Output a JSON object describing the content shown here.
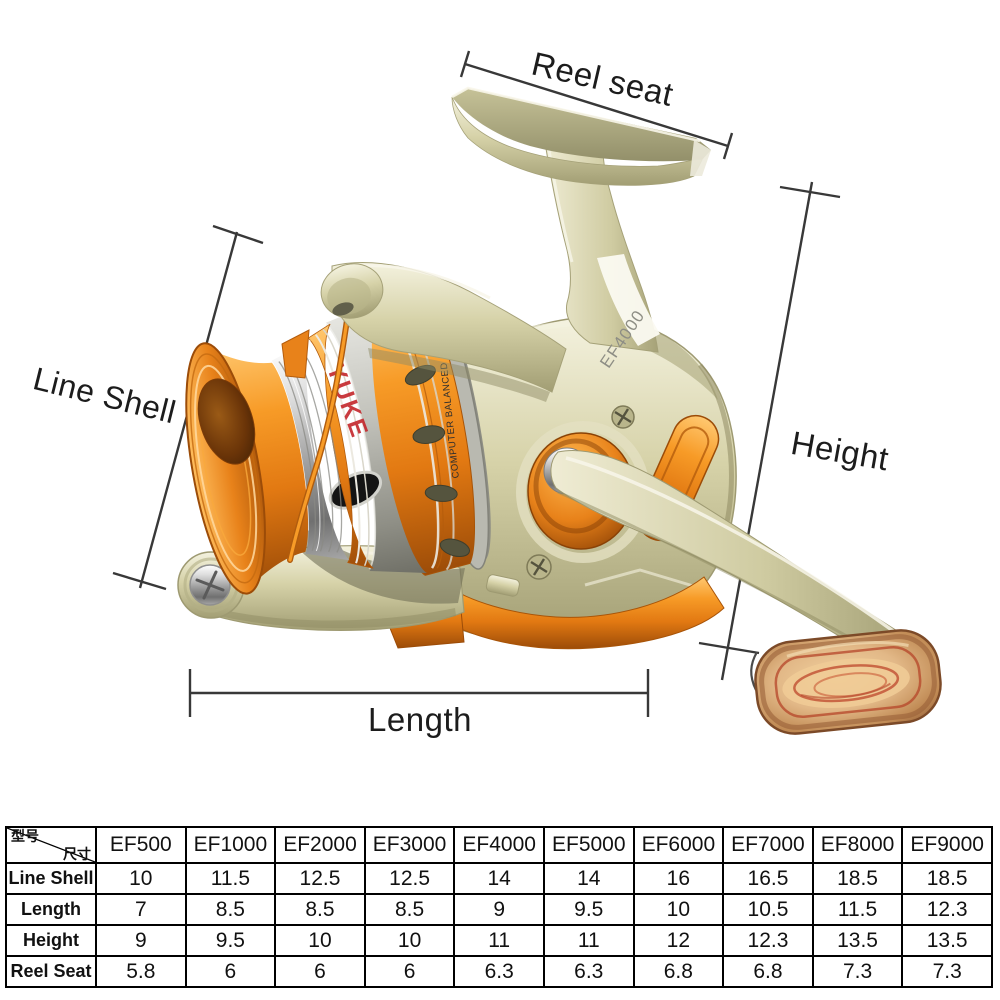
{
  "diagram": {
    "labels": {
      "reel_seat": "Reel seat",
      "height": "Height",
      "line_shell": "Line Shell",
      "length": "Length"
    },
    "reel": {
      "model_text": "EF4000",
      "spool_brand_text": "YUKE",
      "spool_note_text": "COMPUTER BALANCED",
      "colors": {
        "body_champagne": "#cfcba1",
        "accent_orange": "#e8821a",
        "chrome_silver": "#c9c9c4",
        "wood_knob": "#c98f57",
        "dimension_line": "#383838"
      }
    }
  },
  "table": {
    "corner": {
      "top_left": "型号",
      "bottom_right": "尺寸"
    },
    "columns": [
      "EF500",
      "EF1000",
      "EF2000",
      "EF3000",
      "EF4000",
      "EF5000",
      "EF6000",
      "EF7000",
      "EF8000",
      "EF9000"
    ],
    "rows": [
      {
        "label": "Line Shell",
        "values": [
          "10",
          "11.5",
          "12.5",
          "12.5",
          "14",
          "14",
          "16",
          "16.5",
          "18.5",
          "18.5"
        ]
      },
      {
        "label": "Length",
        "values": [
          "7",
          "8.5",
          "8.5",
          "8.5",
          "9",
          "9.5",
          "10",
          "10.5",
          "11.5",
          "12.3"
        ]
      },
      {
        "label": "Height",
        "values": [
          "9",
          "9.5",
          "10",
          "10",
          "11",
          "11",
          "12",
          "12.3",
          "13.5",
          "13.5"
        ]
      },
      {
        "label": "Reel Seat",
        "values": [
          "5.8",
          "6",
          "6",
          "6",
          "6.3",
          "6.3",
          "6.8",
          "6.8",
          "7.3",
          "7.3"
        ]
      }
    ]
  }
}
